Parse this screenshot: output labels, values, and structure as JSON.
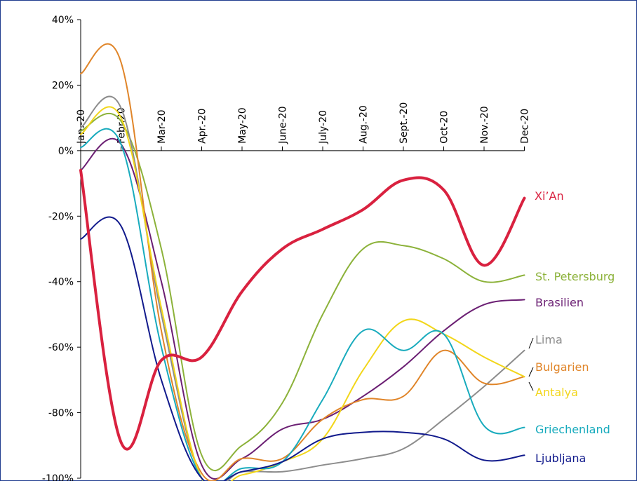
{
  "chart_data": {
    "type": "line",
    "title": "",
    "xlabel": "",
    "ylabel": "",
    "categories": [
      "Jan.-20",
      "Febr.20",
      "Mar-20",
      "Apr.-20",
      "May-20",
      "June-20",
      "July-20",
      "Aug.-20",
      "Sept.-20",
      "Oct-20",
      "Nov.-20",
      "Dec-20"
    ],
    "y_ticks": [
      "40%",
      "20%",
      "0%",
      "-20%",
      "-40%",
      "-60%",
      "-80%",
      "-100%"
    ],
    "y_tick_values": [
      40,
      20,
      0,
      -20,
      -40,
      -60,
      -80,
      -100
    ],
    "ylim": [
      -100,
      40
    ],
    "grid": false,
    "legend": "direct labels at right end of lines",
    "series": [
      {
        "name": "Xi’An",
        "color": "#d9213f",
        "width": 4,
        "values": [
          -6,
          -89,
          -64,
          -63,
          -43,
          -30,
          -24,
          -18,
          -9,
          -12,
          -35,
          -14.5
        ]
      },
      {
        "name": "St. Petersburg",
        "color": "#8cb23a",
        "width": 2,
        "values": [
          6,
          9,
          -30,
          -93,
          -90,
          -77,
          -50,
          -30,
          -29,
          -33,
          -40,
          -38
        ]
      },
      {
        "name": "Brasilien",
        "color": "#6b1f73",
        "width": 2,
        "values": [
          -6,
          2,
          -40,
          -96,
          -94,
          -85,
          -82,
          -75,
          -66,
          -55,
          -47,
          -45.5
        ]
      },
      {
        "name": "Lima",
        "color": "#8c8c8c",
        "width": 2,
        "values": [
          7,
          13,
          -50,
          -100,
          -98,
          -98,
          -96,
          -94,
          -91,
          -82,
          -72,
          -61
        ]
      },
      {
        "name": "Bulgarien",
        "color": "#e08529",
        "width": 2,
        "values": [
          23.5,
          27,
          -55,
          -98.5,
          -94,
          -94,
          -82,
          -76,
          -75,
          -61,
          -71,
          -69
        ]
      },
      {
        "name": "Antalya",
        "color": "#f2d61a",
        "width": 2,
        "values": [
          5,
          10,
          -48,
          -100,
          -99,
          -95,
          -88,
          -67,
          -52,
          -56,
          -63,
          -69
        ]
      },
      {
        "name": "Griechenland",
        "color": "#18abbd",
        "width": 2,
        "values": [
          1,
          2,
          -60,
          -100,
          -97,
          -95,
          -76,
          -55,
          -61,
          -56,
          -84,
          -84.5
        ]
      },
      {
        "name": "Ljubljana",
        "color": "#111a8c",
        "width": 2,
        "values": [
          -27,
          -23,
          -70,
          -100,
          -98,
          -95,
          -88,
          -86,
          -86,
          -88,
          -94.5,
          -93
        ]
      }
    ]
  }
}
